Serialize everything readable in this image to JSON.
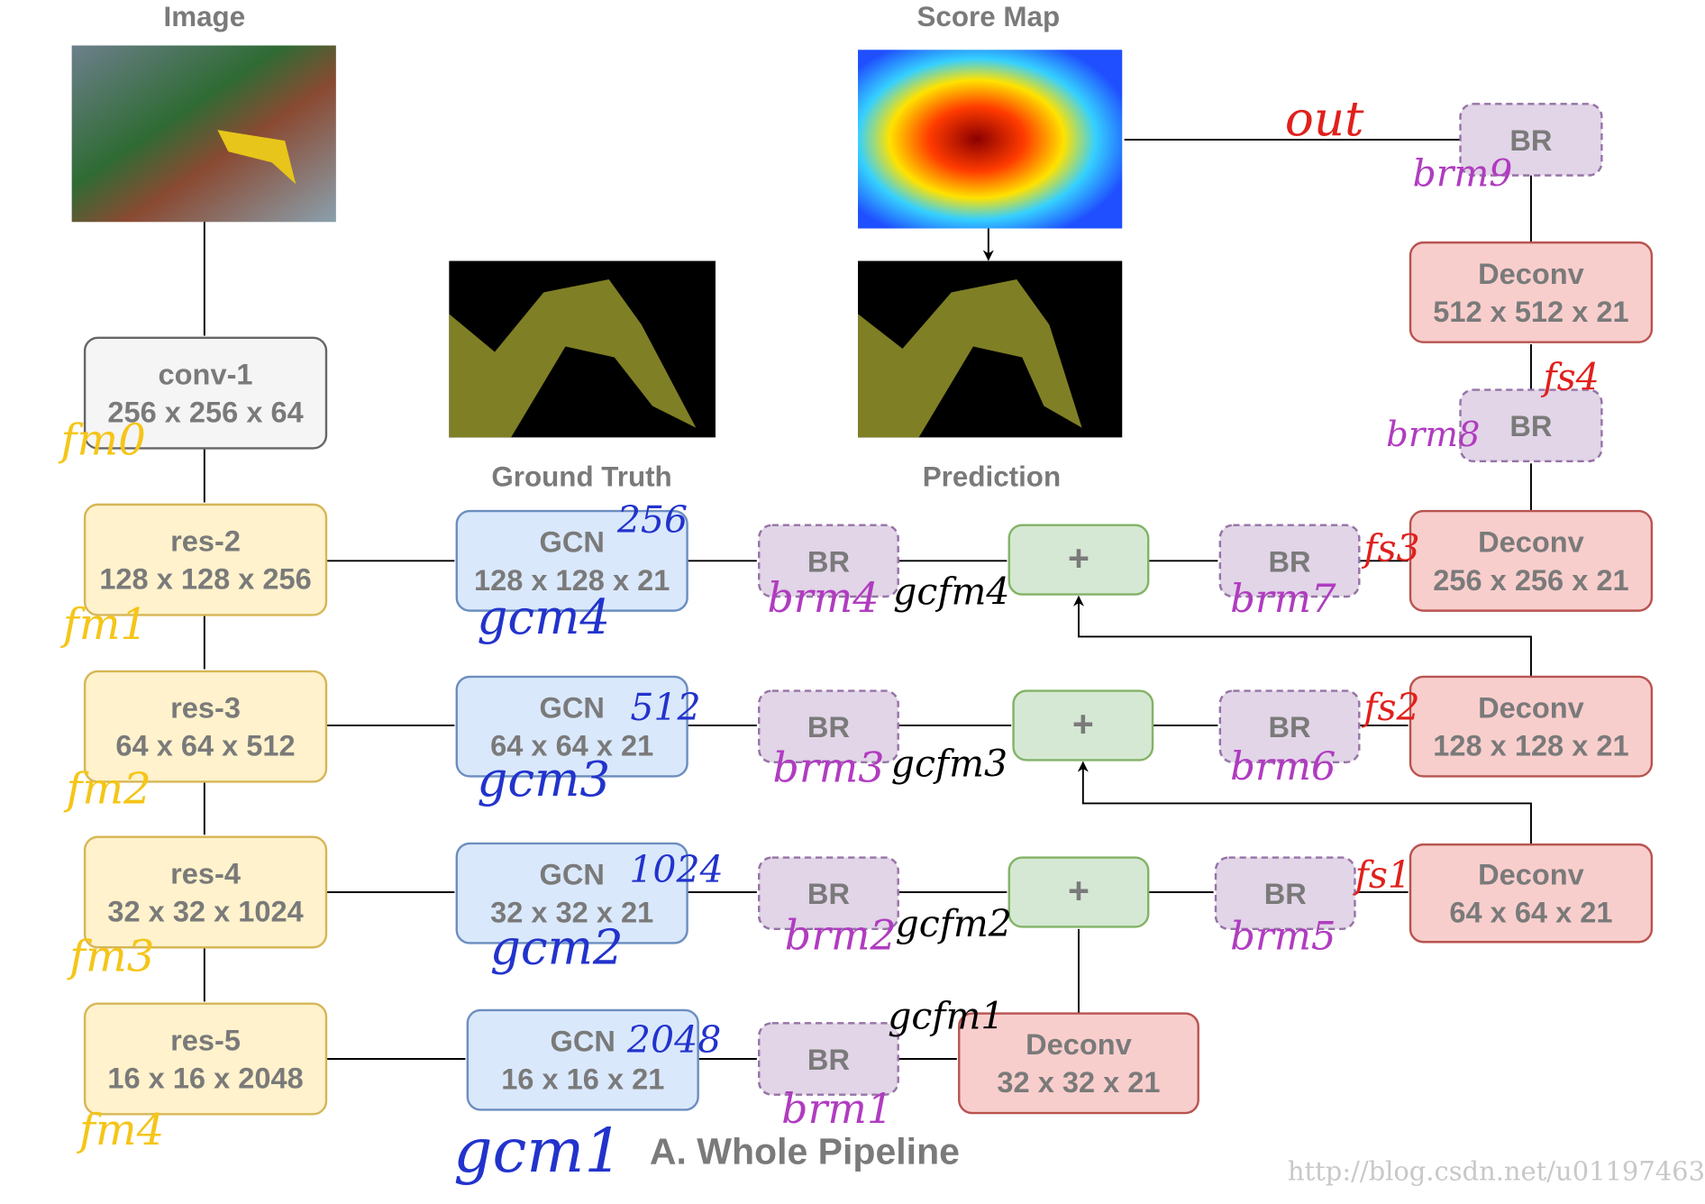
{
  "images": [
    {
      "label": "Image"
    },
    {
      "label": "Score Map"
    },
    {
      "label": "Ground Truth"
    },
    {
      "label": "Prediction"
    }
  ],
  "nodes": [
    {
      "title": "conv-1",
      "size": "256 x 256 x 64"
    },
    {
      "title": "res-2",
      "size": "128 x 128 x 256"
    },
    {
      "title": "res-3",
      "size": "64 x 64 x 512"
    },
    {
      "title": "res-4",
      "size": "32 x 32 x 1024"
    },
    {
      "title": "res-5",
      "size": "16 x 16 x 2048"
    },
    {
      "title": "GCN",
      "size": "128 x 128 x 21"
    },
    {
      "title": "GCN",
      "size": "64 x 64 x 21"
    },
    {
      "title": "GCN",
      "size": "32 x 32 x 21"
    },
    {
      "title": "GCN",
      "size": "16 x 16 x 21"
    },
    {
      "title": "BR"
    },
    {
      "title": "BR"
    },
    {
      "title": "BR"
    },
    {
      "title": "BR"
    },
    {
      "title": "BR"
    },
    {
      "title": "BR"
    },
    {
      "title": "BR"
    },
    {
      "title": "BR"
    },
    {
      "title": "BR"
    },
    {
      "title": "+"
    },
    {
      "title": "+"
    },
    {
      "title": "+"
    },
    {
      "title": "Deconv",
      "size": "32 x 32 x 21"
    },
    {
      "title": "Deconv",
      "size": "64 x 64 x 21"
    },
    {
      "title": "Deconv",
      "size": "128 x 128 x 21"
    },
    {
      "title": "Deconv",
      "size": "256 x 256 x 21"
    },
    {
      "title": "Deconv",
      "size": "512 x 512 x 21"
    }
  ],
  "annotations": [
    "fm0",
    "fm1",
    "fm2",
    "fm3",
    "fm4",
    "256",
    "gcm4",
    "512",
    "gcm3",
    "1024",
    "gcm2",
    "2048",
    "gcm1",
    "brm4",
    "brm3",
    "brm2",
    "brm1",
    "gcfm4",
    "gcfm3",
    "gcfm2",
    "gcfm1",
    "brm7",
    "brm6",
    "brm5",
    "brm8",
    "brm9",
    "fs3",
    "fs2",
    "fs1",
    "fs4",
    "out"
  ],
  "caption": "A. Whole Pipeline",
  "watermark": "http://blog.csdn.net/u01197463"
}
